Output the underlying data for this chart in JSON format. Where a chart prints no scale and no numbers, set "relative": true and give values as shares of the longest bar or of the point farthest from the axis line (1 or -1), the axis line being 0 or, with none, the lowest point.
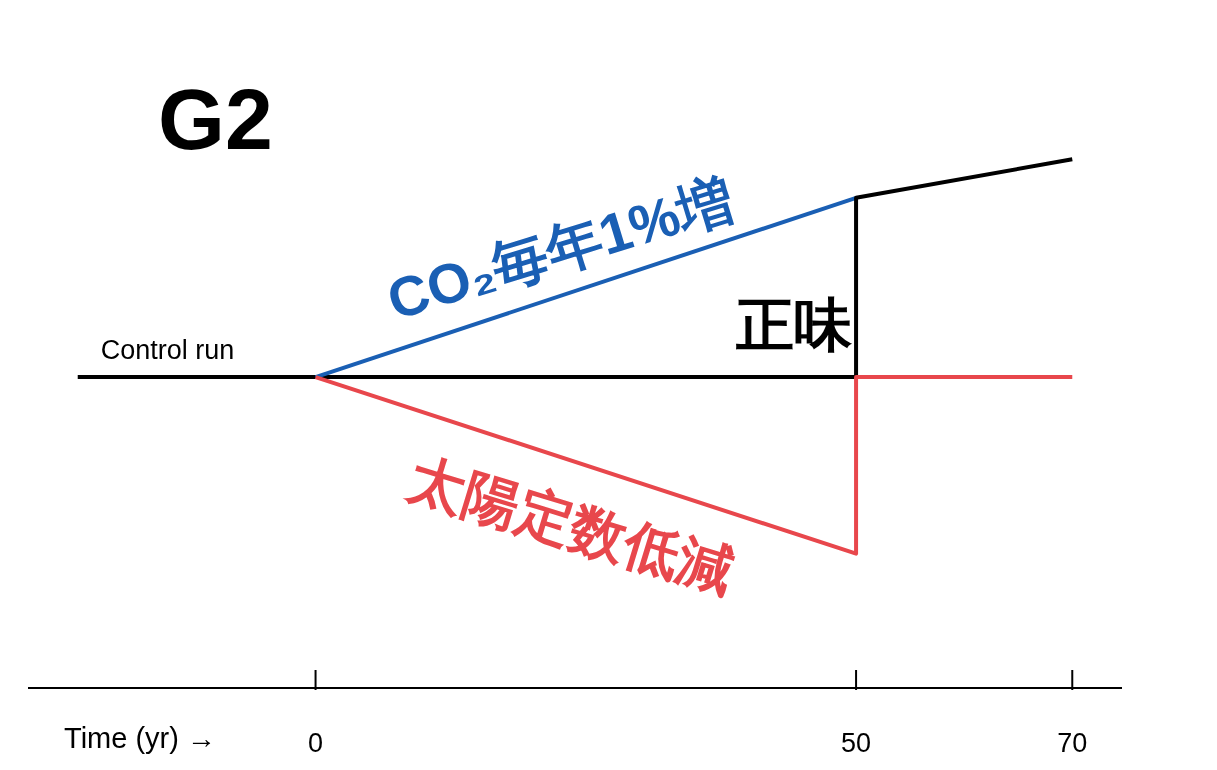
{
  "chart_data": {
    "type": "line",
    "title": "G2",
    "xlabel": "Time (yr) →",
    "relative": true,
    "marker": "none",
    "xlim": [
      -26.6,
      74.6
    ],
    "xticks": [
      0,
      50,
      70
    ],
    "series": [
      {
        "name": "Control run",
        "color": "#000000",
        "x": [
          -22,
          50
        ],
        "values": [
          0.588,
          0.588
        ]
      },
      {
        "name": "CO₂毎年1%増",
        "color": "#1a5fb4",
        "x": [
          0,
          50
        ],
        "values": [
          0.588,
          0.927
        ]
      },
      {
        "color": "#000000",
        "x": [
          50,
          50,
          70
        ],
        "values": [
          0.588,
          0.927,
          1
        ]
      },
      {
        "name": "太陽定数低減",
        "color": "#e8474c",
        "x": [
          0,
          50,
          50,
          70
        ],
        "values": [
          0.588,
          0.254,
          0.588,
          0.588
        ]
      }
    ],
    "annotations": [
      "正味"
    ]
  }
}
